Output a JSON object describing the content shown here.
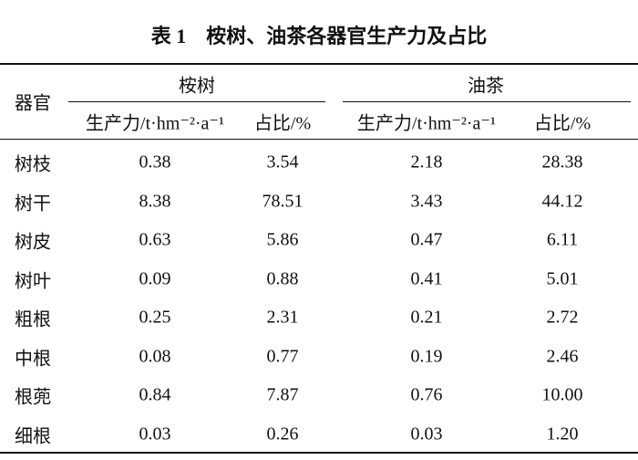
{
  "title": "表 1　桉树、油茶各器官生产力及占比",
  "table": {
    "corner": "器官",
    "groups": [
      "桉树",
      "油茶"
    ],
    "subheaders": [
      "生产力/t·hm⁻²·a⁻¹",
      "占比/%",
      "生产力/t·hm⁻²·a⁻¹",
      "占比/%"
    ],
    "rows": [
      [
        "树枝",
        "0.38",
        "3.54",
        "2.18",
        "28.38"
      ],
      [
        "树干",
        "8.38",
        "78.51",
        "3.43",
        "44.12"
      ],
      [
        "树皮",
        "0.63",
        "5.86",
        "0.47",
        "6.11"
      ],
      [
        "树叶",
        "0.09",
        "0.88",
        "0.41",
        "5.01"
      ],
      [
        "粗根",
        "0.25",
        "2.31",
        "0.21",
        "2.72"
      ],
      [
        "中根",
        "0.08",
        "0.77",
        "0.19",
        "2.46"
      ],
      [
        "根蔸",
        "0.84",
        "7.87",
        "0.76",
        "10.00"
      ],
      [
        "细根",
        "0.03",
        "0.26",
        "0.03",
        "1.20"
      ]
    ]
  }
}
